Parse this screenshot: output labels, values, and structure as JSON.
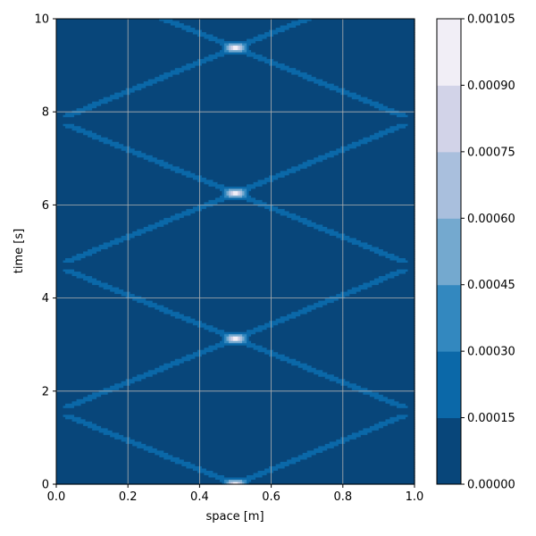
{
  "chart_data": {
    "type": "heatmap",
    "subtype": "filled-contour",
    "title": "",
    "xlabel": "space [m]",
    "ylabel": "time [s]",
    "xlim": [
      0,
      1
    ],
    "ylim": [
      0,
      10
    ],
    "x_ticks": [
      "0.0",
      "0.2",
      "0.4",
      "0.6",
      "0.8",
      "1.0"
    ],
    "y_ticks": [
      "0",
      "2",
      "4",
      "6",
      "8",
      "10"
    ],
    "grid": true,
    "colorbar": {
      "levels": [
        0.0,
        0.00015,
        0.0003,
        0.00045,
        0.0006,
        0.00075,
        0.0009,
        0.00105
      ],
      "tick_labels": [
        "0.00000",
        "0.00015",
        "0.00030",
        "0.00045",
        "0.00060",
        "0.00075",
        "0.00090",
        "0.00105"
      ],
      "colors": [
        "#08467a",
        "#0b68a8",
        "#3388bf",
        "#74a9cf",
        "#a9bfdd",
        "#d2d3e8",
        "#f1eef6"
      ]
    },
    "field": {
      "wave_speed_m_per_s": 0.32,
      "domain": "x in [0,1], t in [0,10]",
      "peak_crossings": [
        {
          "x": 0.5,
          "t": 0.0
        },
        {
          "x": 0.0,
          "t": 1.58
        },
        {
          "x": 1.0,
          "t": 1.58
        },
        {
          "x": 0.5,
          "t": 3.16
        },
        {
          "x": 0.0,
          "t": 4.74
        },
        {
          "x": 1.0,
          "t": 4.74
        },
        {
          "x": 0.5,
          "t": 6.32
        },
        {
          "x": 0.0,
          "t": 7.9
        },
        {
          "x": 1.0,
          "t": 7.9
        },
        {
          "x": 0.5,
          "t": 9.48
        }
      ],
      "peak_value": 0.001
    }
  }
}
